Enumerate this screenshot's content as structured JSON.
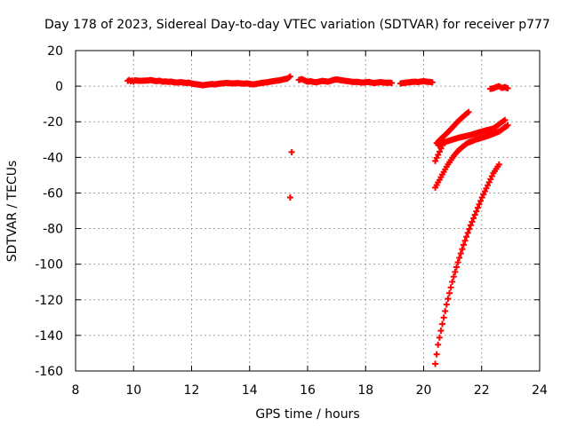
{
  "chart_data": {
    "type": "scatter",
    "title": "Day 178 of 2023, Sidereal Day-to-day VTEC variation (SDTVAR) for receiver p777",
    "xlabel": "GPS time / hours",
    "ylabel": "SDTVAR / TECUs",
    "xlim": [
      8,
      24
    ],
    "ylim": [
      -160,
      20
    ],
    "xticks": [
      8,
      10,
      12,
      14,
      16,
      18,
      20,
      22,
      24
    ],
    "yticks": [
      20,
      0,
      -20,
      -40,
      -60,
      -80,
      -100,
      -120,
      -140,
      -160
    ],
    "grid": true,
    "marker": "+",
    "series_color": "#ff0000",
    "series": [
      {
        "name": "band-1",
        "points": [
          [
            9.8,
            3
          ],
          [
            9.85,
            3.5
          ],
          [
            9.9,
            2.8
          ],
          [
            9.95,
            3.2
          ],
          [
            10.0,
            2.5
          ],
          [
            10.05,
            3.3
          ],
          [
            10.2,
            3.0
          ],
          [
            10.5,
            3.2
          ],
          [
            10.6,
            3.5
          ],
          [
            10.7,
            3
          ],
          [
            10.8,
            2.8
          ],
          [
            10.9,
            3.1
          ],
          [
            11.0,
            2.5
          ],
          [
            11.1,
            2.7
          ],
          [
            11.2,
            2.4
          ],
          [
            11.3,
            2.6
          ],
          [
            11.4,
            2.2
          ],
          [
            11.5,
            2.0
          ],
          [
            11.6,
            2.3
          ],
          [
            11.7,
            2.1
          ],
          [
            11.8,
            1.8
          ],
          [
            11.9,
            2.0
          ],
          [
            12.0,
            1.5
          ],
          [
            12.1,
            1.2
          ],
          [
            12.2,
            1.0
          ],
          [
            12.3,
            0.8
          ],
          [
            12.4,
            0.5
          ],
          [
            12.5,
            0.8
          ],
          [
            12.6,
            1.0
          ],
          [
            12.7,
            1.2
          ],
          [
            12.8,
            1.0
          ],
          [
            12.9,
            1.3
          ],
          [
            13.0,
            1.5
          ],
          [
            13.1,
            1.6
          ],
          [
            13.2,
            1.8
          ],
          [
            13.3,
            1.7
          ],
          [
            13.4,
            1.5
          ],
          [
            13.5,
            1.6
          ],
          [
            13.6,
            1.8
          ],
          [
            13.7,
            1.5
          ],
          [
            13.8,
            1.4
          ],
          [
            13.9,
            1.6
          ],
          [
            14.0,
            1.3
          ],
          [
            14.1,
            1.0
          ],
          [
            14.2,
            1.2
          ],
          [
            14.3,
            1.5
          ],
          [
            14.4,
            1.8
          ],
          [
            14.5,
            2.0
          ],
          [
            14.6,
            2.2
          ],
          [
            14.7,
            2.5
          ],
          [
            14.8,
            2.8
          ],
          [
            14.9,
            3.0
          ],
          [
            15.0,
            3.2
          ],
          [
            15.1,
            3.5
          ],
          [
            15.2,
            4.0
          ],
          [
            15.3,
            4.2
          ],
          [
            15.4,
            5.5
          ]
        ]
      },
      {
        "name": "band-2",
        "points": [
          [
            15.7,
            3.5
          ],
          [
            15.8,
            4
          ],
          [
            15.9,
            3.2
          ],
          [
            16.0,
            2.5
          ],
          [
            16.1,
            2.8
          ],
          [
            16.2,
            2.4
          ],
          [
            16.3,
            2.2
          ],
          [
            16.4,
            2.6
          ],
          [
            16.5,
            3.0
          ],
          [
            16.6,
            2.8
          ],
          [
            16.7,
            2.5
          ],
          [
            16.8,
            3.0
          ],
          [
            16.9,
            3.5
          ],
          [
            17.0,
            3.8
          ],
          [
            17.1,
            3.5
          ],
          [
            17.2,
            3.2
          ],
          [
            17.3,
            3.0
          ],
          [
            17.4,
            2.8
          ],
          [
            17.5,
            2.5
          ],
          [
            17.6,
            2.3
          ],
          [
            17.7,
            2.5
          ],
          [
            17.8,
            2.2
          ],
          [
            17.9,
            2.0
          ],
          [
            18.0,
            2.2
          ],
          [
            18.1,
            2.4
          ],
          [
            18.2,
            2.0
          ],
          [
            18.3,
            1.8
          ],
          [
            18.4,
            2.0
          ],
          [
            18.5,
            2.3
          ],
          [
            18.6,
            2.1
          ],
          [
            18.7,
            1.9
          ],
          [
            18.8,
            2.0
          ],
          [
            18.9,
            1.8
          ]
        ]
      },
      {
        "name": "band-3",
        "points": [
          [
            19.2,
            1.5
          ],
          [
            19.3,
            1.8
          ],
          [
            19.4,
            2.0
          ],
          [
            19.5,
            2.2
          ],
          [
            19.6,
            2.4
          ],
          [
            19.7,
            2.5
          ],
          [
            19.8,
            2.3
          ],
          [
            19.9,
            2.6
          ],
          [
            20.0,
            2.8
          ],
          [
            20.1,
            2.5
          ],
          [
            20.2,
            2.4
          ],
          [
            20.3,
            2.2
          ]
        ]
      },
      {
        "name": "outliers",
        "points": [
          [
            15.45,
            -37
          ],
          [
            15.4,
            -62.5
          ]
        ]
      },
      {
        "name": "track-upper",
        "points": [
          [
            20.45,
            -32
          ],
          [
            20.6,
            -29.5
          ],
          [
            20.8,
            -26.5
          ],
          [
            21.0,
            -23
          ],
          [
            21.2,
            -19.5
          ],
          [
            21.4,
            -16.5
          ],
          [
            21.55,
            -14.5
          ]
        ]
      },
      {
        "name": "track-steep-left",
        "points": [
          [
            20.4,
            -42
          ],
          [
            20.5,
            -38.5
          ],
          [
            20.6,
            -35
          ],
          [
            20.7,
            -31.5
          ]
        ]
      },
      {
        "name": "track-middle",
        "points": [
          [
            20.5,
            -33
          ],
          [
            20.8,
            -31
          ],
          [
            21.2,
            -29
          ],
          [
            21.6,
            -27.5
          ],
          [
            22.0,
            -25.5
          ],
          [
            22.4,
            -23.8
          ],
          [
            22.8,
            -19
          ]
        ]
      },
      {
        "name": "track-lower",
        "points": [
          [
            20.4,
            -57
          ],
          [
            20.6,
            -51
          ],
          [
            20.8,
            -45
          ],
          [
            21.0,
            -40
          ],
          [
            21.2,
            -36
          ],
          [
            21.5,
            -32
          ],
          [
            21.8,
            -30
          ],
          [
            22.2,
            -28
          ],
          [
            22.6,
            -25.5
          ],
          [
            22.9,
            -22
          ]
        ]
      },
      {
        "name": "track-deep",
        "points": [
          [
            20.4,
            -156
          ],
          [
            20.5,
            -145
          ],
          [
            20.6,
            -137
          ],
          [
            20.8,
            -122
          ],
          [
            21.0,
            -109
          ],
          [
            21.2,
            -98
          ],
          [
            21.4,
            -88
          ],
          [
            21.6,
            -79
          ],
          [
            21.8,
            -71
          ],
          [
            22.0,
            -63
          ],
          [
            22.2,
            -56
          ],
          [
            22.4,
            -49
          ],
          [
            22.6,
            -44
          ]
        ]
      },
      {
        "name": "band-4",
        "points": [
          [
            22.3,
            -1.5
          ],
          [
            22.4,
            -1.2
          ],
          [
            22.5,
            -0.5
          ],
          [
            22.6,
            0
          ],
          [
            22.7,
            -1
          ],
          [
            22.8,
            -0.5
          ],
          [
            22.9,
            -1.2
          ]
        ]
      }
    ]
  }
}
